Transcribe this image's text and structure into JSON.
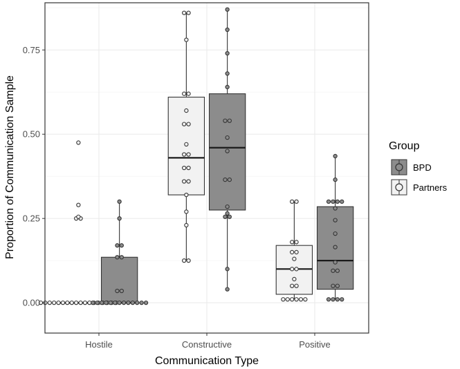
{
  "chart_data": {
    "type": "boxplot",
    "title": "",
    "xlabel": "Communication Type",
    "ylabel": "Proportion of Communication Sample",
    "categories": [
      "Hostile",
      "Constructive",
      "Positive"
    ],
    "ylim": [
      -0.09,
      0.89
    ],
    "yticks": [
      0.0,
      0.25,
      0.5,
      0.75
    ],
    "ytick_labels": [
      "0.00",
      "0.25",
      "0.50",
      "0.75"
    ],
    "grid": true,
    "legend": {
      "title": "Group",
      "position": "right",
      "entries": [
        "BPD",
        "Partners"
      ]
    },
    "colors": {
      "Partners": "#f2f2f2",
      "BPD": "#8c8c8c",
      "grid_major": "#ebebeb",
      "grid_minor": "#f5f5f5",
      "panel_border": "#333333",
      "box_stroke": "#333333",
      "point_stroke": "#333333"
    },
    "series": [
      {
        "name": "Partners",
        "boxes": [
          {
            "category": "Hostile",
            "min": 0.0,
            "q1": 0.0,
            "median": 0.0,
            "q3": 0.0,
            "max": 0.0,
            "outliers": [
              0.25,
              0.25,
              0.255,
              0.29,
              0.475
            ],
            "points": [
              0,
              0,
              0,
              0,
              0,
              0,
              0,
              0,
              0,
              0,
              0,
              0,
              0,
              0,
              0,
              0,
              0,
              0,
              0.25,
              0.25,
              0.255,
              0.29,
              0.475
            ]
          },
          {
            "category": "Constructive",
            "min": 0.125,
            "q1": 0.32,
            "median": 0.43,
            "q3": 0.61,
            "max": 0.86,
            "outliers": [],
            "points": [
              0.125,
              0.125,
              0.23,
              0.27,
              0.32,
              0.36,
              0.36,
              0.4,
              0.4,
              0.44,
              0.44,
              0.47,
              0.53,
              0.53,
              0.57,
              0.62,
              0.62,
              0.78,
              0.86,
              0.86
            ]
          },
          {
            "category": "Positive",
            "min": 0.01,
            "q1": 0.025,
            "median": 0.1,
            "q3": 0.17,
            "max": 0.3,
            "outliers": [],
            "points": [
              0.01,
              0.01,
              0.01,
              0.01,
              0.01,
              0.01,
              0.05,
              0.05,
              0.07,
              0.1,
              0.1,
              0.13,
              0.15,
              0.15,
              0.18,
              0.18,
              0.3,
              0.3
            ]
          }
        ]
      },
      {
        "name": "BPD",
        "boxes": [
          {
            "category": "Hostile",
            "min": 0.0,
            "q1": 0.0,
            "median": 0.0,
            "q3": 0.135,
            "max": 0.3,
            "outliers": [],
            "points": [
              0,
              0,
              0,
              0,
              0,
              0,
              0,
              0,
              0,
              0,
              0,
              0,
              0,
              0.035,
              0.035,
              0.135,
              0.135,
              0.17,
              0.17,
              0.25,
              0.3
            ]
          },
          {
            "category": "Constructive",
            "min": 0.04,
            "q1": 0.275,
            "median": 0.46,
            "q3": 0.62,
            "max": 0.87,
            "outliers": [],
            "points": [
              0.04,
              0.1,
              0.255,
              0.255,
              0.265,
              0.285,
              0.365,
              0.365,
              0.45,
              0.49,
              0.54,
              0.54,
              0.64,
              0.68,
              0.74,
              0.81,
              0.87
            ]
          },
          {
            "category": "Positive",
            "min": 0.01,
            "q1": 0.04,
            "median": 0.125,
            "q3": 0.285,
            "max": 0.435,
            "outliers": [],
            "points": [
              0.01,
              0.01,
              0.01,
              0.01,
              0.05,
              0.05,
              0.095,
              0.095,
              0.12,
              0.165,
              0.205,
              0.245,
              0.28,
              0.3,
              0.3,
              0.3,
              0.3,
              0.365,
              0.435
            ]
          }
        ]
      }
    ]
  }
}
